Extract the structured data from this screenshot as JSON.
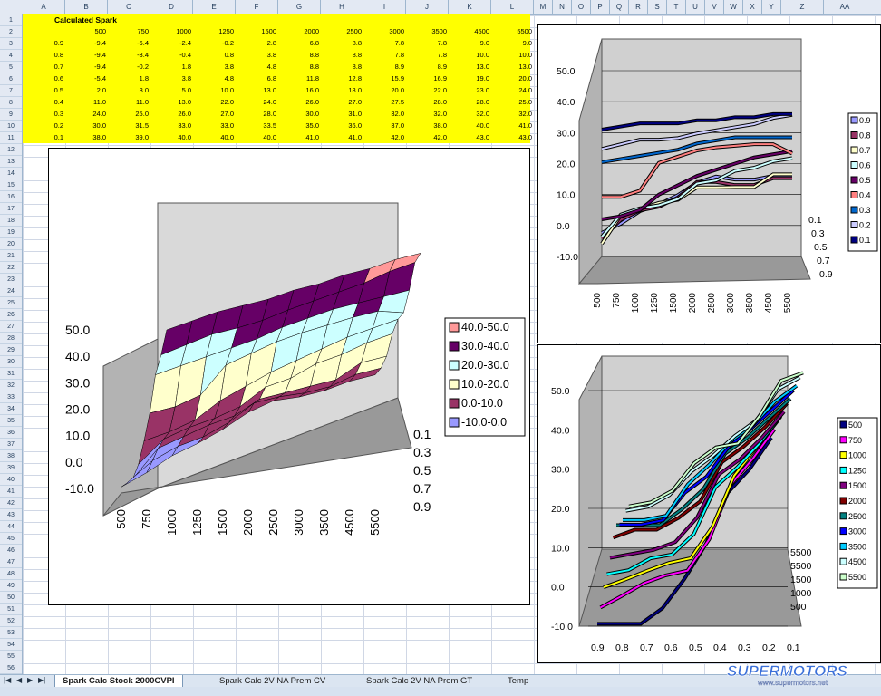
{
  "spreadsheet": {
    "columns": [
      "A",
      "B",
      "C",
      "D",
      "E",
      "F",
      "G",
      "H",
      "I",
      "J",
      "K",
      "L",
      "M",
      "N",
      "O",
      "P",
      "Q",
      "R",
      "S",
      "T",
      "U",
      "V",
      "W",
      "X",
      "Y",
      "Z",
      "AA"
    ],
    "rows": [
      "1",
      "2",
      "3",
      "4",
      "5",
      "6",
      "7",
      "8",
      "9",
      "10",
      "11",
      "12",
      "13",
      "14",
      "15",
      "16",
      "17",
      "18",
      "19",
      "20",
      "21",
      "22",
      "23",
      "24",
      "25",
      "26",
      "27",
      "28",
      "29",
      "30",
      "31",
      "32",
      "33",
      "34",
      "35",
      "36",
      "37",
      "38",
      "39",
      "40",
      "41",
      "42",
      "43",
      "44",
      "45",
      "46",
      "47",
      "48",
      "49",
      "50",
      "51",
      "52",
      "53",
      "54",
      "55",
      "56"
    ],
    "title": "Calculated Spark",
    "rpm_headers": [
      "500",
      "750",
      "1000",
      "1250",
      "1500",
      "2000",
      "2500",
      "3000",
      "3500",
      "4500",
      "5500"
    ],
    "table": [
      {
        "load": "0.9",
        "values": [
          "-9.4",
          "-6.4",
          "-2.4",
          "-0.2",
          "2.8",
          "6.8",
          "8.8",
          "7.8",
          "7.8",
          "9.0",
          "9.0"
        ]
      },
      {
        "load": "0.8",
        "values": [
          "-9.4",
          "-3.4",
          "-0.4",
          "0.8",
          "3.8",
          "8.8",
          "8.8",
          "7.8",
          "7.8",
          "10.0",
          "10.0"
        ]
      },
      {
        "load": "0.7",
        "values": [
          "-9.4",
          "-0.2",
          "1.8",
          "3.8",
          "4.8",
          "8.8",
          "8.8",
          "8.9",
          "8.9",
          "13.0",
          "13.0"
        ]
      },
      {
        "load": "0.6",
        "values": [
          "-5.4",
          "1.8",
          "3.8",
          "4.8",
          "6.8",
          "11.8",
          "12.8",
          "15.9",
          "16.9",
          "19.0",
          "20.0"
        ]
      },
      {
        "load": "0.5",
        "values": [
          "2.0",
          "3.0",
          "5.0",
          "10.0",
          "13.0",
          "16.0",
          "18.0",
          "20.0",
          "22.0",
          "23.0",
          "24.0"
        ]
      },
      {
        "load": "0.4",
        "values": [
          "11.0",
          "11.0",
          "13.0",
          "22.0",
          "24.0",
          "26.0",
          "27.0",
          "27.5",
          "28.0",
          "28.0",
          "25.0"
        ]
      },
      {
        "load": "0.3",
        "values": [
          "24.0",
          "25.0",
          "26.0",
          "27.0",
          "28.0",
          "30.0",
          "31.0",
          "32.0",
          "32.0",
          "32.0",
          "32.0"
        ]
      },
      {
        "load": "0.2",
        "values": [
          "30.0",
          "31.5",
          "33.0",
          "33.0",
          "33.5",
          "35.0",
          "36.0",
          "37.0",
          "38.0",
          "40.0",
          "41.0"
        ]
      },
      {
        "load": "0.1",
        "values": [
          "38.0",
          "39.0",
          "40.0",
          "40.0",
          "40.0",
          "41.0",
          "41.0",
          "42.0",
          "42.0",
          "43.0",
          "43.0"
        ]
      }
    ]
  },
  "chart_data": [
    {
      "type": "surface",
      "x": [
        "500",
        "750",
        "1000",
        "1250",
        "1500",
        "2000",
        "2500",
        "3000",
        "3500",
        "4500",
        "5500"
      ],
      "depth": [
        "0.1",
        "0.3",
        "0.5",
        "0.7",
        "0.9"
      ],
      "z_ticks": [
        "50.0",
        "40.0",
        "30.0",
        "20.0",
        "10.0",
        "0.0",
        "-10.0"
      ],
      "zlim": [
        -10,
        50
      ],
      "legend": [
        {
          "label": "40.0-50.0",
          "color": "#ff9999"
        },
        {
          "label": "30.0-40.0",
          "color": "#660066"
        },
        {
          "label": "20.0-30.0",
          "color": "#ccffff"
        },
        {
          "label": "10.0-20.0",
          "color": "#ffffcc"
        },
        {
          "label": "0.0-10.0",
          "color": "#993366"
        },
        {
          "label": "-10.0-0.0",
          "color": "#9999ff"
        }
      ],
      "legend_position": "right"
    },
    {
      "type": "line",
      "x": [
        "500",
        "750",
        "1000",
        "1250",
        "1500",
        "2000",
        "2500",
        "3000",
        "3500",
        "4500",
        "5500"
      ],
      "y_ticks": [
        "50.0",
        "40.0",
        "30.0",
        "20.0",
        "10.0",
        "0.0",
        "-10.0"
      ],
      "depth": [
        "0.1",
        "0.3",
        "0.5",
        "0.7",
        "0.9"
      ],
      "ylim": [
        -10,
        50
      ],
      "series": [
        {
          "name": "0.9",
          "color": "#9999ff"
        },
        {
          "name": "0.8",
          "color": "#993366"
        },
        {
          "name": "0.7",
          "color": "#ffffcc"
        },
        {
          "name": "0.6",
          "color": "#ccffff"
        },
        {
          "name": "0.5",
          "color": "#660066"
        },
        {
          "name": "0.4",
          "color": "#ff8080"
        },
        {
          "name": "0.3",
          "color": "#0066cc"
        },
        {
          "name": "0.2",
          "color": "#ccccff"
        },
        {
          "name": "0.1",
          "color": "#000080"
        }
      ],
      "legend_position": "right"
    },
    {
      "type": "line",
      "x": [
        "0.9",
        "0.8",
        "0.7",
        "0.6",
        "0.5",
        "0.4",
        "0.3",
        "0.2",
        "0.1"
      ],
      "y_ticks": [
        "50.0",
        "40.0",
        "30.0",
        "20.0",
        "10.0",
        "0.0",
        "-10.0"
      ],
      "depth": [
        "5500",
        "5500",
        "1500",
        "1000",
        "500"
      ],
      "ylim": [
        -10,
        50
      ],
      "series": [
        {
          "name": "500",
          "color": "#000080"
        },
        {
          "name": "750",
          "color": "#ff00ff"
        },
        {
          "name": "1000",
          "color": "#ffff00"
        },
        {
          "name": "1250",
          "color": "#00ffff"
        },
        {
          "name": "1500",
          "color": "#800080"
        },
        {
          "name": "2000",
          "color": "#800000"
        },
        {
          "name": "2500",
          "color": "#008080"
        },
        {
          "name": "3000",
          "color": "#0000ff"
        },
        {
          "name": "3500",
          "color": "#00ccff"
        },
        {
          "name": "4500",
          "color": "#ccffff"
        },
        {
          "name": "5500",
          "color": "#ccffcc"
        }
      ],
      "legend_position": "right"
    }
  ],
  "tabs": [
    {
      "label": "Spark Calc Stock 2000CVPI",
      "active": true
    },
    {
      "label": "Spark Calc 2V NA Prem CV",
      "active": false
    },
    {
      "label": "Spark Calc 2V NA Prem GT",
      "active": false
    },
    {
      "label": "Temp",
      "active": false
    }
  ],
  "watermark": {
    "brand": "SUPERMOTORS",
    "url": "www.supermotors.net"
  }
}
